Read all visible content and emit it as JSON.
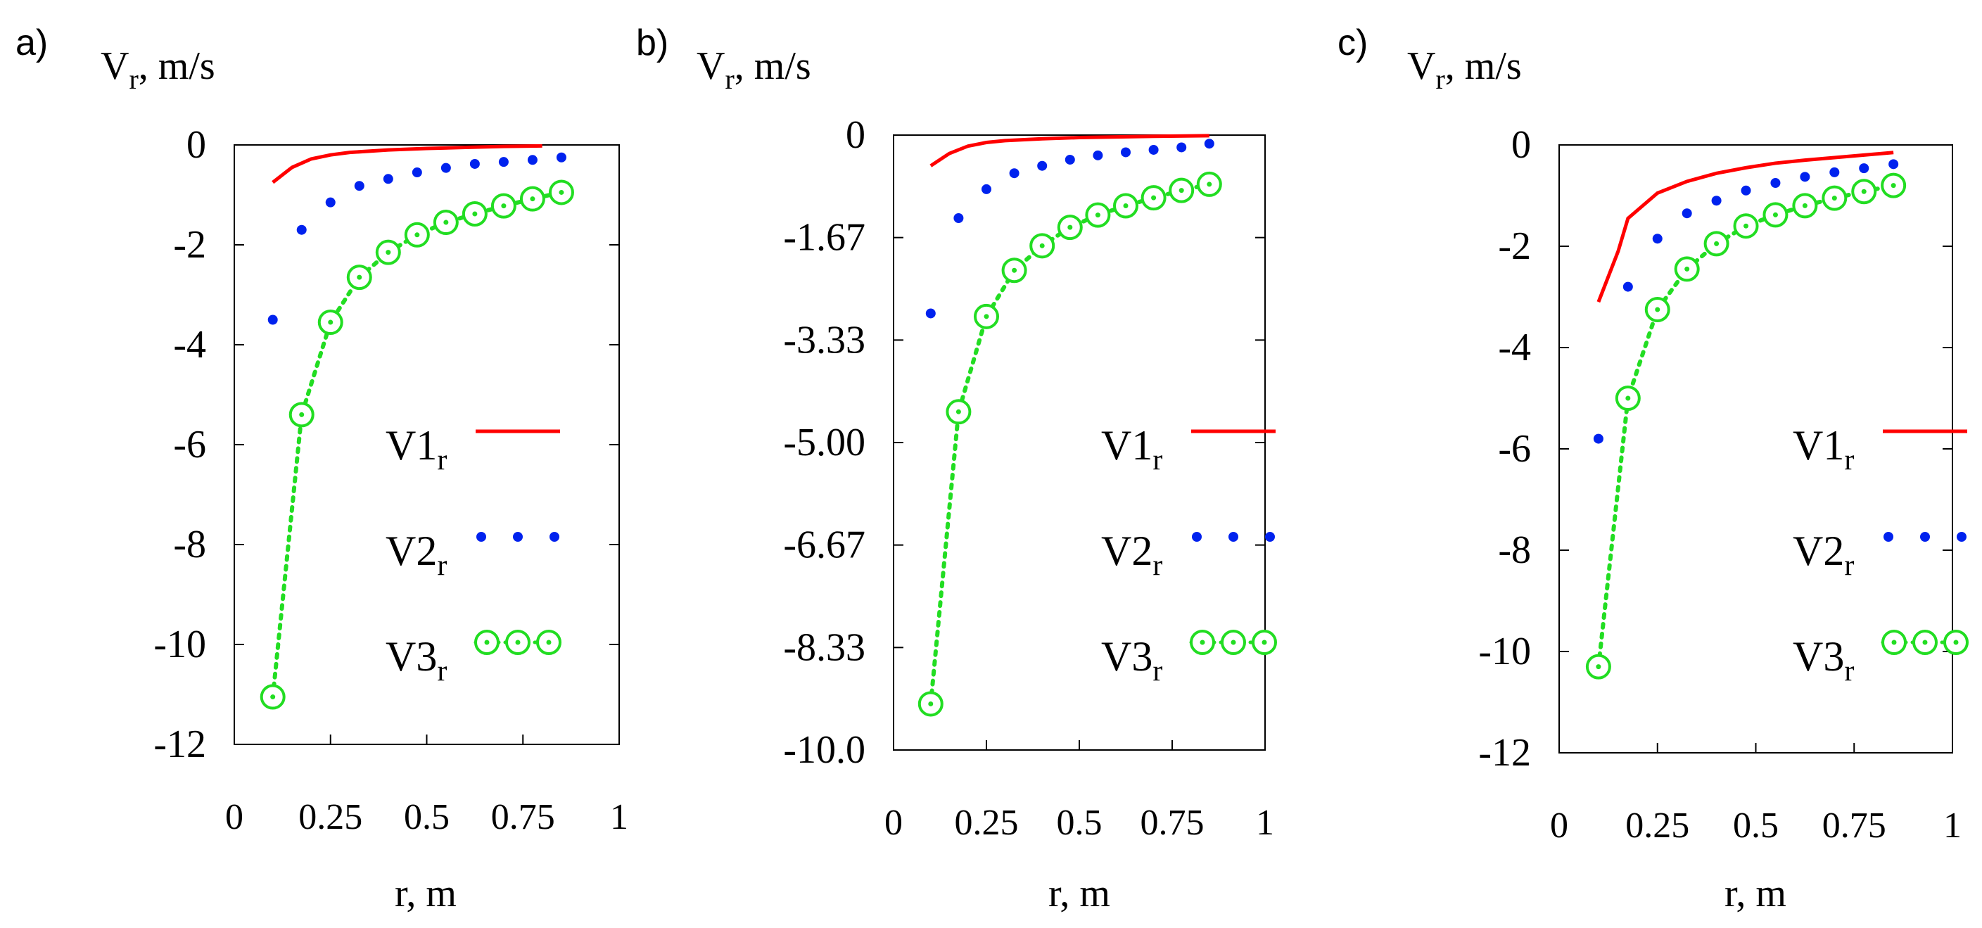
{
  "chart_data": [
    {
      "type": "line",
      "panel_label": "a)",
      "ylabel_main": "V",
      "ylabel_sub": "r",
      "ylabel_rest": ", m/s",
      "xlabel": "r, m",
      "xlim": [
        0,
        1
      ],
      "ylim": [
        -12,
        0
      ],
      "xticks": [
        "0",
        "0.25",
        "0.5",
        "0.75",
        "1"
      ],
      "yticks": [
        "0",
        "-2",
        "-4",
        "-6",
        "-8",
        "-10",
        "-12"
      ],
      "grid": false,
      "legend_position": "center-right",
      "series": [
        {
          "name": "V1",
          "name_sub": "r",
          "style": "solid",
          "color": "#ff0000",
          "x": [
            0.1,
            0.15,
            0.2,
            0.25,
            0.3,
            0.4,
            0.5,
            0.6,
            0.7,
            0.8
          ],
          "y": [
            -0.75,
            -0.45,
            -0.28,
            -0.2,
            -0.15,
            -0.1,
            -0.07,
            -0.05,
            -0.03,
            -0.02
          ]
        },
        {
          "name": "V2",
          "name_sub": "r",
          "style": "dots",
          "color": "#0022ee",
          "x": [
            0.1,
            0.175,
            0.25,
            0.325,
            0.4,
            0.475,
            0.55,
            0.625,
            0.7,
            0.775,
            0.85
          ],
          "y": [
            -3.5,
            -1.7,
            -1.15,
            -0.82,
            -0.68,
            -0.55,
            -0.46,
            -0.38,
            -0.34,
            -0.3,
            -0.25
          ]
        },
        {
          "name": "V3",
          "name_sub": "r",
          "style": "dotted-circles",
          "color": "#22dd22",
          "x": [
            0.1,
            0.175,
            0.25,
            0.325,
            0.4,
            0.475,
            0.55,
            0.625,
            0.7,
            0.775,
            0.85
          ],
          "y": [
            -11.05,
            -5.4,
            -3.55,
            -2.65,
            -2.15,
            -1.8,
            -1.55,
            -1.38,
            -1.22,
            -1.08,
            -0.95
          ]
        }
      ]
    },
    {
      "type": "line",
      "panel_label": "b)",
      "ylabel_main": "V",
      "ylabel_sub": "r",
      "ylabel_rest": ", m/s",
      "xlabel": "r, m",
      "xlim": [
        0,
        1
      ],
      "ylim": [
        -10,
        0
      ],
      "xticks": [
        "0",
        "0.25",
        "0.5",
        "0.75",
        "1"
      ],
      "yticks": [
        "0",
        "-1.67",
        "-3.33",
        "-5.00",
        "-6.67",
        "-8.33",
        "-10.0"
      ],
      "grid": false,
      "legend_position": "center-right",
      "series": [
        {
          "name": "V1",
          "name_sub": "r",
          "style": "solid",
          "color": "#ff0000",
          "x": [
            0.1,
            0.15,
            0.2,
            0.25,
            0.3,
            0.4,
            0.5,
            0.6,
            0.7,
            0.85
          ],
          "y": [
            -0.5,
            -0.3,
            -0.18,
            -0.12,
            -0.09,
            -0.06,
            -0.04,
            -0.03,
            -0.02,
            -0.01
          ]
        },
        {
          "name": "V2",
          "name_sub": "r",
          "style": "dots",
          "color": "#0022ee",
          "x": [
            0.1,
            0.175,
            0.25,
            0.325,
            0.4,
            0.475,
            0.55,
            0.625,
            0.7,
            0.775,
            0.85
          ],
          "y": [
            -2.9,
            -1.35,
            -0.88,
            -0.62,
            -0.5,
            -0.4,
            -0.33,
            -0.28,
            -0.24,
            -0.2,
            -0.14
          ]
        },
        {
          "name": "V3",
          "name_sub": "r",
          "style": "dotted-circles",
          "color": "#22dd22",
          "x": [
            0.1,
            0.175,
            0.25,
            0.325,
            0.4,
            0.475,
            0.55,
            0.625,
            0.7,
            0.775,
            0.85
          ],
          "y": [
            -9.25,
            -4.5,
            -2.95,
            -2.2,
            -1.8,
            -1.5,
            -1.3,
            -1.15,
            -1.02,
            -0.9,
            -0.8
          ]
        }
      ]
    },
    {
      "type": "line",
      "panel_label": "c)",
      "ylabel_main": "V",
      "ylabel_sub": "r",
      "ylabel_rest": ", m/s",
      "xlabel": "r, m",
      "xlim": [
        0,
        1
      ],
      "ylim": [
        -12,
        0
      ],
      "xticks": [
        "0",
        "0.25",
        "0.5",
        "0.75",
        "1"
      ],
      "yticks": [
        "0",
        "-2",
        "-4",
        "-6",
        "-8",
        "-10",
        "-12"
      ],
      "grid": false,
      "legend_position": "center-right",
      "series": [
        {
          "name": "V1",
          "name_sub": "r",
          "style": "solid",
          "color": "#ff0000",
          "x": [
            0.1,
            0.15,
            0.175,
            0.25,
            0.325,
            0.4,
            0.475,
            0.55,
            0.625,
            0.7,
            0.775,
            0.85
          ],
          "y": [
            -3.1,
            -2.1,
            -1.45,
            -0.95,
            -0.72,
            -0.56,
            -0.45,
            -0.36,
            -0.3,
            -0.25,
            -0.2,
            -0.15
          ]
        },
        {
          "name": "V2",
          "name_sub": "r",
          "style": "dots",
          "color": "#0022ee",
          "x": [
            0.1,
            0.175,
            0.25,
            0.325,
            0.4,
            0.475,
            0.55,
            0.625,
            0.7,
            0.775,
            0.85
          ],
          "y": [
            -5.8,
            -2.8,
            -1.85,
            -1.35,
            -1.1,
            -0.9,
            -0.75,
            -0.63,
            -0.54,
            -0.46,
            -0.38
          ]
        },
        {
          "name": "V3",
          "name_sub": "r",
          "style": "dotted-circles",
          "color": "#22dd22",
          "x": [
            0.1,
            0.175,
            0.25,
            0.325,
            0.4,
            0.475,
            0.55,
            0.625,
            0.7,
            0.775,
            0.85
          ],
          "y": [
            -10.3,
            -5.0,
            -3.25,
            -2.45,
            -1.95,
            -1.6,
            -1.38,
            -1.2,
            -1.05,
            -0.92,
            -0.8
          ]
        }
      ]
    }
  ]
}
